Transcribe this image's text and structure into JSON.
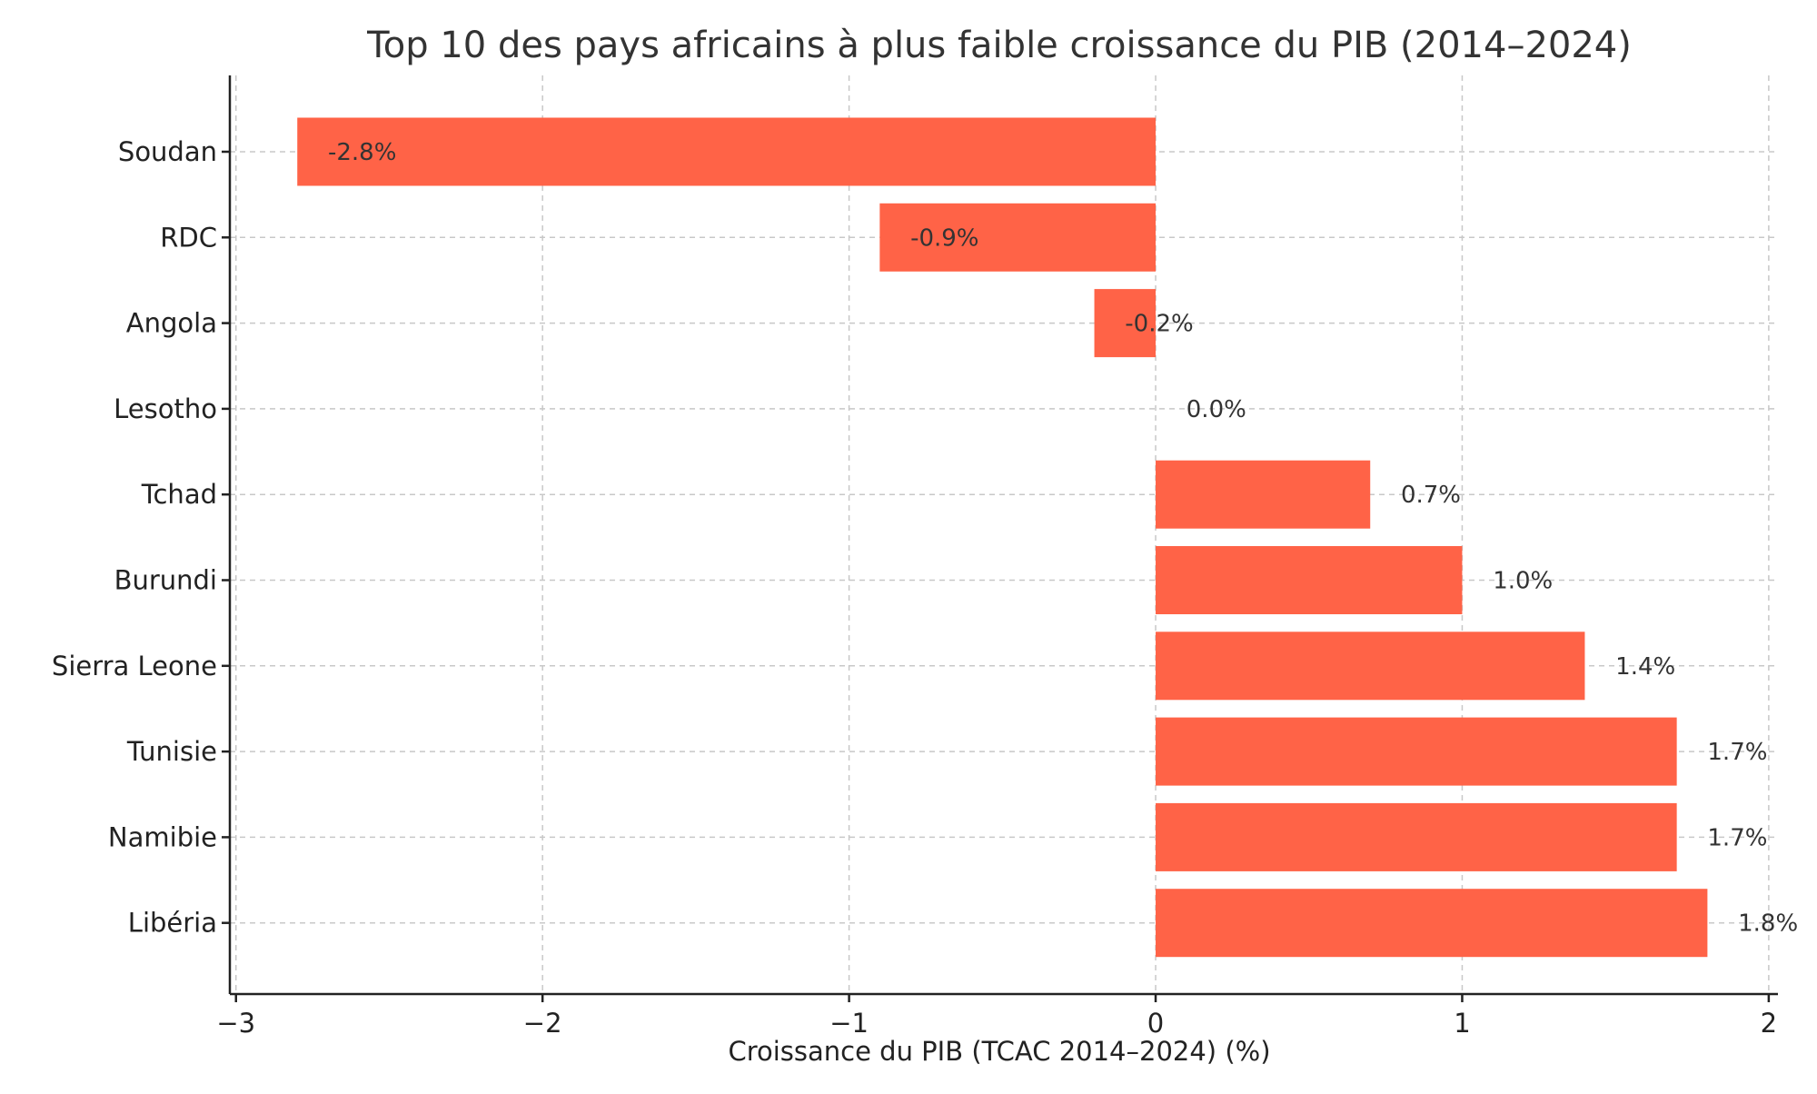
{
  "chart_data": {
    "type": "bar",
    "orientation": "horizontal",
    "title": "Top 10 des pays africains à plus faible croissance du PIB (2014–2024)",
    "xlabel": "Croissance du PIB (TCAC 2014–2024) (%)",
    "ylabel": "",
    "xlim": [
      -3.02,
      2.03
    ],
    "x_ticks": [
      -3,
      -2,
      -1,
      0,
      1,
      2
    ],
    "x_tick_labels": [
      "−3",
      "−2",
      "−1",
      "0",
      "1",
      "2"
    ],
    "categories": [
      "Soudan",
      "RDC",
      "Angola",
      "Lesotho",
      "Tchad",
      "Burundi",
      "Sierra Leone",
      "Tunisie",
      "Namibie",
      "Libéria"
    ],
    "values": [
      -2.8,
      -0.9,
      -0.2,
      0.0,
      0.7,
      1.0,
      1.4,
      1.7,
      1.7,
      1.8
    ],
    "data_labels": [
      "-2.8%",
      "-0.9%",
      "-0.2%",
      "0.0%",
      "0.7%",
      "1.0%",
      "1.4%",
      "1.7%",
      "1.7%",
      "1.8%"
    ],
    "bar_color": "#ff6347",
    "grid": true,
    "grid_style": "dashed"
  }
}
